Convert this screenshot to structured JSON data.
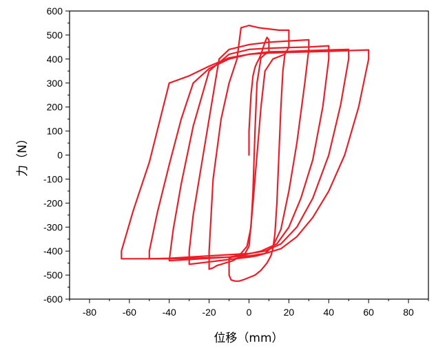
{
  "chart_data": {
    "type": "line",
    "title": "",
    "xlabel": "位移（mm）",
    "ylabel": "力（N）",
    "xlim": [
      -90,
      90
    ],
    "ylim": [
      -600,
      600
    ],
    "xticks": [
      -80,
      -60,
      -40,
      -20,
      0,
      20,
      40,
      60,
      80
    ],
    "yticks": [
      600,
      500,
      400,
      300,
      200,
      100,
      0,
      -100,
      -200,
      -300,
      -400,
      -500,
      -600
    ],
    "grid": false,
    "legend": "none",
    "color": "#ee1c25",
    "series": [
      {
        "x": [
          0,
          0,
          1,
          2,
          3,
          4,
          5,
          6,
          7,
          8,
          9,
          10,
          10,
          8,
          6,
          4,
          3,
          2,
          1,
          -1,
          -4,
          -7,
          -10,
          -10,
          -9,
          -7,
          -5,
          -3,
          0,
          3,
          6,
          9,
          11,
          12,
          13,
          14,
          15,
          16,
          17,
          18
        ],
        "y": [
          0,
          100,
          250,
          330,
          365,
          385,
          400,
          420,
          445,
          470,
          490,
          480,
          430,
          420,
          405,
          300,
          100,
          -150,
          -300,
          -380,
          -410,
          -420,
          -430,
          -500,
          -520,
          -525,
          -525,
          -520,
          -510,
          -500,
          -480,
          -450,
          -420,
          -390,
          -330,
          -200,
          0,
          200,
          350,
          420
        ]
      },
      {
        "x": [
          -4,
          0,
          5,
          15,
          20,
          20,
          18,
          12,
          8,
          6,
          4,
          2,
          0,
          -2,
          -4,
          -6,
          -8,
          -10,
          -12,
          -14,
          -16,
          -18,
          -20,
          -20,
          -18,
          -14,
          -10,
          -6,
          -4
        ],
        "y": [
          530,
          540,
          530,
          520,
          520,
          450,
          420,
          400,
          350,
          200,
          0,
          -200,
          -380,
          -410,
          -425,
          -430,
          -440,
          -445,
          -450,
          -455,
          -460,
          -470,
          -475,
          -400,
          -100,
          150,
          300,
          400,
          530
        ]
      },
      {
        "x": [
          -15,
          -10,
          0,
          10,
          20,
          30,
          30,
          28,
          24,
          20,
          16,
          12,
          8,
          4,
          0,
          -5,
          -10,
          -15,
          -20,
          -25,
          -30,
          -30,
          -28,
          -24,
          -20,
          -15
        ],
        "y": [
          400,
          440,
          460,
          470,
          475,
          480,
          440,
          300,
          50,
          -150,
          -310,
          -380,
          -410,
          -420,
          -425,
          -430,
          -435,
          -440,
          -445,
          -450,
          -455,
          -400,
          -250,
          -50,
          150,
          400
        ]
      },
      {
        "x": [
          -20,
          -10,
          0,
          10,
          20,
          30,
          40,
          40,
          37,
          32,
          26,
          20,
          14,
          6,
          -2,
          -10,
          -20,
          -30,
          -40,
          -40,
          -38,
          -34,
          -28,
          -20
        ],
        "y": [
          350,
          420,
          440,
          445,
          448,
          450,
          455,
          400,
          200,
          -20,
          -180,
          -300,
          -370,
          -400,
          -415,
          -425,
          -430,
          -435,
          -440,
          -440,
          -310,
          -120,
          120,
          350
        ]
      },
      {
        "x": [
          -28,
          -20,
          -10,
          0,
          10,
          20,
          30,
          40,
          50,
          50,
          46,
          40,
          32,
          24,
          16,
          8,
          0,
          -10,
          -20,
          -30,
          -40,
          -50,
          -50,
          -46,
          -40,
          -34,
          -28
        ],
        "y": [
          300,
          360,
          400,
          420,
          430,
          432,
          435,
          438,
          440,
          400,
          210,
          0,
          -180,
          -300,
          -370,
          -400,
          -410,
          -415,
          -420,
          -425,
          -430,
          -432,
          -400,
          -240,
          -40,
          150,
          300
        ]
      },
      {
        "x": [
          -40,
          -30,
          -20,
          -10,
          0,
          10,
          20,
          30,
          40,
          50,
          60,
          60,
          55,
          48,
          40,
          32,
          24,
          16,
          8,
          0,
          -10,
          -20,
          -30,
          -40,
          -50,
          -64,
          -64,
          -58,
          -50,
          -40
        ],
        "y": [
          300,
          330,
          370,
          405,
          420,
          425,
          428,
          430,
          432,
          435,
          438,
          400,
          200,
          0,
          -150,
          -260,
          -340,
          -390,
          -410,
          -420,
          -425,
          -428,
          -430,
          -432,
          -432,
          -432,
          -400,
          -230,
          -30,
          300
        ]
      }
    ]
  }
}
